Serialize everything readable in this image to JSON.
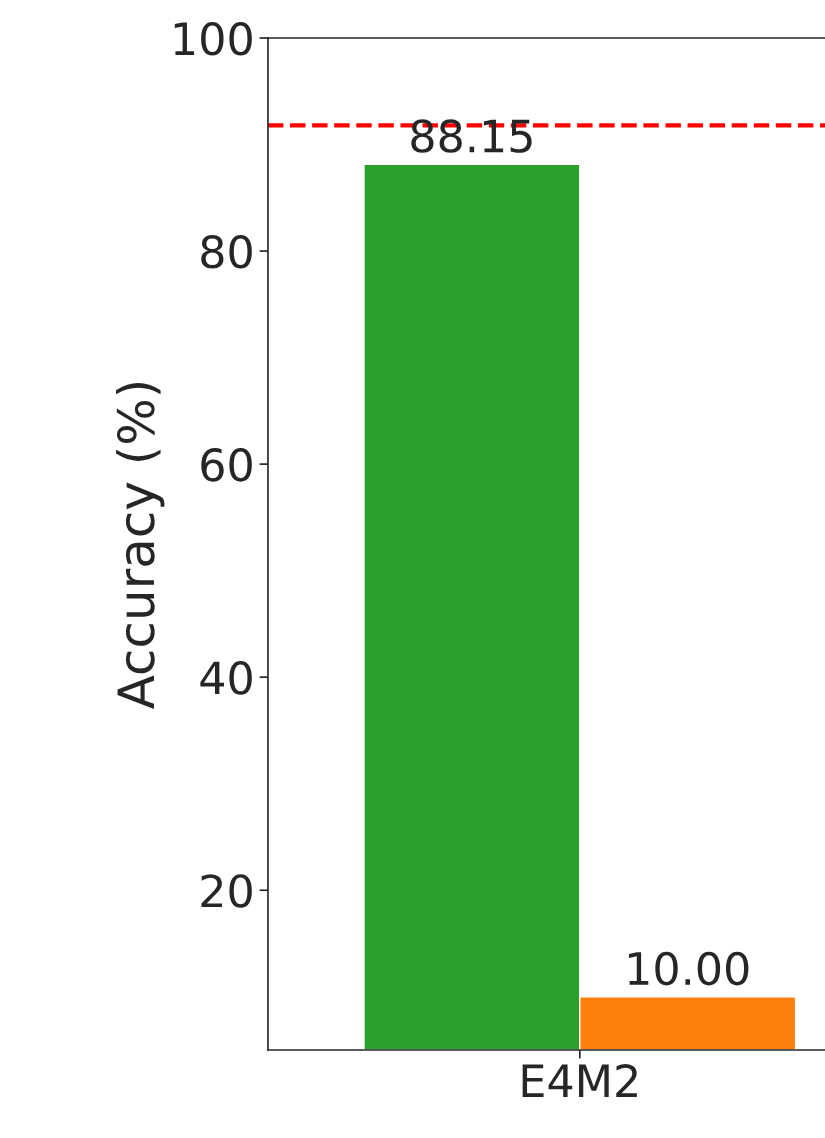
{
  "chart_data": {
    "type": "bar",
    "ylabel": "Accuracy (%)",
    "categories": [
      "E4M2"
    ],
    "series": [
      {
        "color": "#2ca02c",
        "values": [
          88.15
        ],
        "value_labels": [
          "88.15"
        ]
      },
      {
        "color": "#ff7f0e",
        "values": [
          10
        ],
        "value_labels": [
          "10.00"
        ]
      }
    ],
    "ylim": [
      5,
      100
    ],
    "yticks": [
      20,
      40,
      60,
      80,
      100
    ],
    "grid": false,
    "legend": false,
    "ref_lines": [
      {
        "axis": "y",
        "value": 91.8,
        "color": "#ff0000",
        "line_style": "dashed"
      }
    ]
  }
}
